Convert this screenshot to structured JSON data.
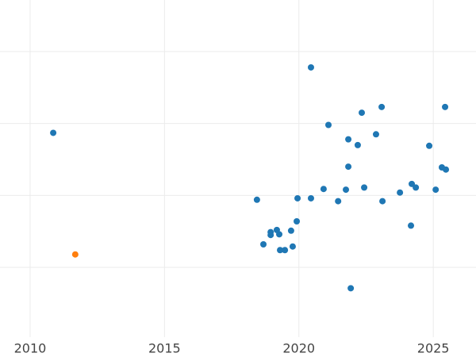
{
  "chart_data": {
    "type": "scatter",
    "xlim": [
      2008.88,
      2026.59
    ],
    "xticks": [
      2010,
      2015,
      2020,
      2025
    ],
    "ylim": [
      -0.246,
      4.717
    ],
    "ygrid": [
      1,
      2,
      3,
      4
    ],
    "grid": true,
    "series": [
      {
        "color": "#1f77b4",
        "x": [
          2010.86,
          2020.45,
          2021.1,
          2022.34,
          2023.08,
          2025.44,
          2021.84,
          2022.19,
          2022.87,
          2024.85,
          2025.32,
          2025.47,
          2021.84,
          2024.2,
          2024.35,
          2025.09,
          2023.76,
          2023.11,
          2022.43,
          2021.75,
          2020.92,
          2021.46,
          2020.45,
          2019.95,
          2018.44,
          2019.92,
          2024.17,
          2019.18,
          2018.95,
          2018.95,
          2019.27,
          2019.71,
          2018.68,
          2019.3,
          2019.48,
          2019.77,
          2021.93
        ],
        "values": [
          2.87,
          3.78,
          2.98,
          3.15,
          3.23,
          3.23,
          2.78,
          2.7,
          2.85,
          2.69,
          2.39,
          2.36,
          2.4,
          2.16,
          2.11,
          2.08,
          2.04,
          1.92,
          2.11,
          2.08,
          2.09,
          1.92,
          1.96,
          1.96,
          1.94,
          1.64,
          1.58,
          1.52,
          1.49,
          1.45,
          1.46,
          1.51,
          1.32,
          1.24,
          1.24,
          1.29,
          0.71
        ]
      },
      {
        "color": "#ff7f0e",
        "x": [
          2011.68
        ],
        "values": [
          1.18
        ]
      }
    ]
  }
}
